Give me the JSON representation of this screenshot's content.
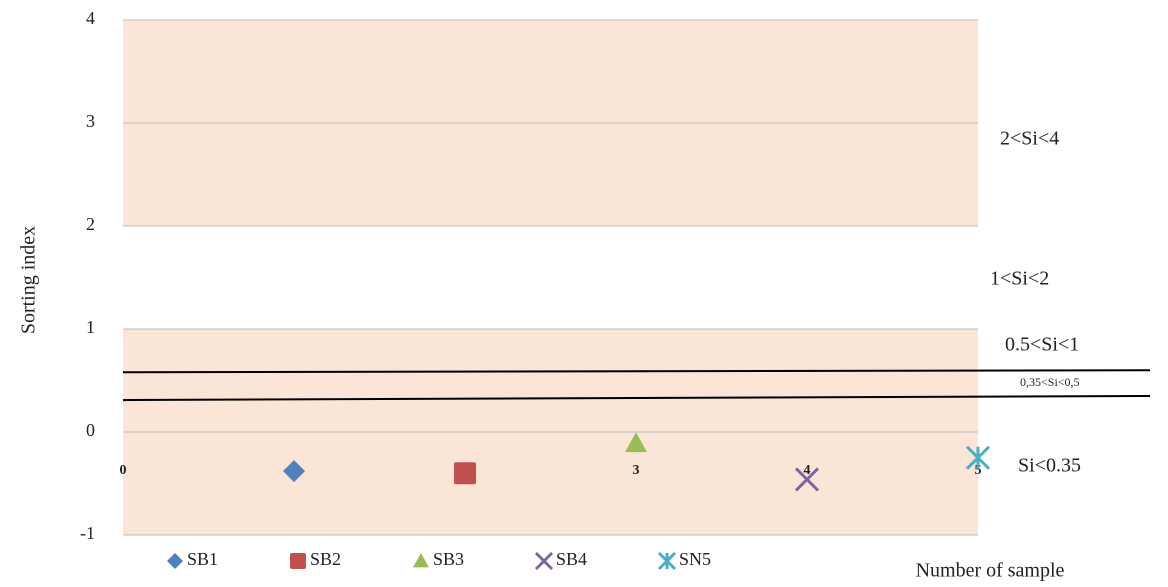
{
  "chart_data": {
    "type": "scatter",
    "y_label": "Sorting index",
    "x_label": "Number of sample",
    "xlim": [
      0,
      5
    ],
    "xticks": [
      0,
      1,
      2,
      3,
      4,
      5
    ],
    "ylim": [
      -1,
      4
    ],
    "yticks": [
      -1,
      0,
      1,
      2,
      3,
      4
    ],
    "grid": true,
    "bands": [
      {
        "from": -1,
        "to": 1,
        "color": "#fbe5d6"
      },
      {
        "from": 2,
        "to": 4,
        "color": "#fbe5d6"
      }
    ],
    "threshold_lines": [
      {
        "y_start": 0.58,
        "y_end": 0.6,
        "color": "#000000"
      },
      {
        "y_start": 0.31,
        "y_end": 0.35,
        "color": "#000000"
      }
    ],
    "annotations": [
      "2<Si<4",
      "1<Si<2",
      "0.5<Si<1",
      "0,35<Si<0,5",
      "Si<0.35"
    ],
    "legend": "bottom",
    "series": [
      {
        "name": "SB1",
        "color": "#4f81bd",
        "marker": "diamond",
        "x": [
          1
        ],
        "values": [
          -0.38
        ]
      },
      {
        "name": "SB2",
        "color": "#c0504d",
        "marker": "square",
        "x": [
          2
        ],
        "values": [
          -0.4
        ]
      },
      {
        "name": "SB3",
        "color": "#9bbb59",
        "marker": "triangle",
        "x": [
          3
        ],
        "values": [
          -0.11
        ]
      },
      {
        "name": "SB4",
        "color": "#8064a2",
        "marker": "x",
        "x": [
          4
        ],
        "values": [
          -0.46
        ]
      },
      {
        "name": "SN5",
        "color": "#4bacc6",
        "marker": "star",
        "x": [
          5
        ],
        "values": [
          -0.25
        ]
      }
    ]
  }
}
